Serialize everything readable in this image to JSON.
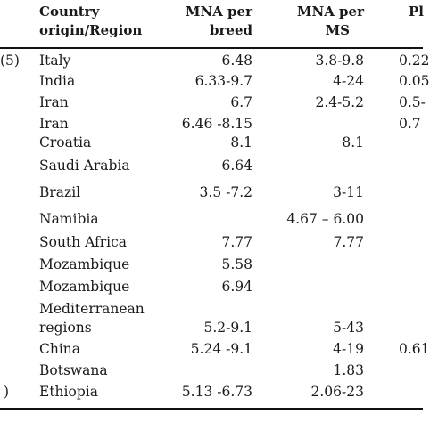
{
  "headers": {
    "country_line1": "Country",
    "country_line2": "origin/Region",
    "breed_line1": "MNA per",
    "breed_line2": "breed",
    "ms_line1": "MNA per",
    "ms_line2": "MS",
    "p_partial": "Pl"
  },
  "rows": [
    {
      "left": "(5)",
      "country": "Italy",
      "breed": "6.48",
      "ms": "3.8-9.8",
      "p": "0.22"
    },
    {
      "left": "",
      "country": "India",
      "breed": "6.33-9.7",
      "ms": "4-24",
      "p": "0.05"
    },
    {
      "left": "",
      "country": "Iran",
      "breed": "6.7",
      "ms": "2.4-5.2",
      "p": "0.5-"
    },
    {
      "left": "",
      "country": "Iran",
      "breed": "6.46 -8.15",
      "ms": "",
      "p": "0.7"
    },
    {
      "left": "",
      "country": "Croatia",
      "breed": "8.1",
      "ms": "8.1",
      "p": ""
    },
    {
      "left": "",
      "country": "Saudi Arabia",
      "breed": "6.64",
      "ms": "",
      "p": ""
    },
    {
      "left": "",
      "country": "Brazil",
      "breed": "3.5 -7.2",
      "ms": "3-11",
      "p": ""
    },
    {
      "left": "",
      "country": "Namibia",
      "breed": "",
      "ms": "4.67 – 6.00",
      "p": ""
    },
    {
      "left": "",
      "country": "South Africa",
      "breed": "7.77",
      "ms": "7.77",
      "p": ""
    },
    {
      "left": "",
      "country": "Mozambique",
      "breed": "5.58",
      "ms": "",
      "p": ""
    },
    {
      "left": "",
      "country": "Mozambique",
      "breed": "6.94",
      "ms": "",
      "p": ""
    },
    {
      "left": "",
      "country": "Mediterranean",
      "country2": "regions",
      "breed": "5.2-9.1",
      "ms": "5-43",
      "p": ""
    },
    {
      "left": "",
      "country": "China",
      "breed": "5.24 -9.1",
      "ms": "4-19",
      "p": "0.61"
    },
    {
      "left": "",
      "country": "Botswana",
      "breed": "",
      "ms": "1.83",
      "p": ""
    },
    {
      "left": ")",
      "country": "Ethiopia",
      "breed": "5.13 -6.73",
      "ms": "2.06-23",
      "p": ""
    }
  ]
}
